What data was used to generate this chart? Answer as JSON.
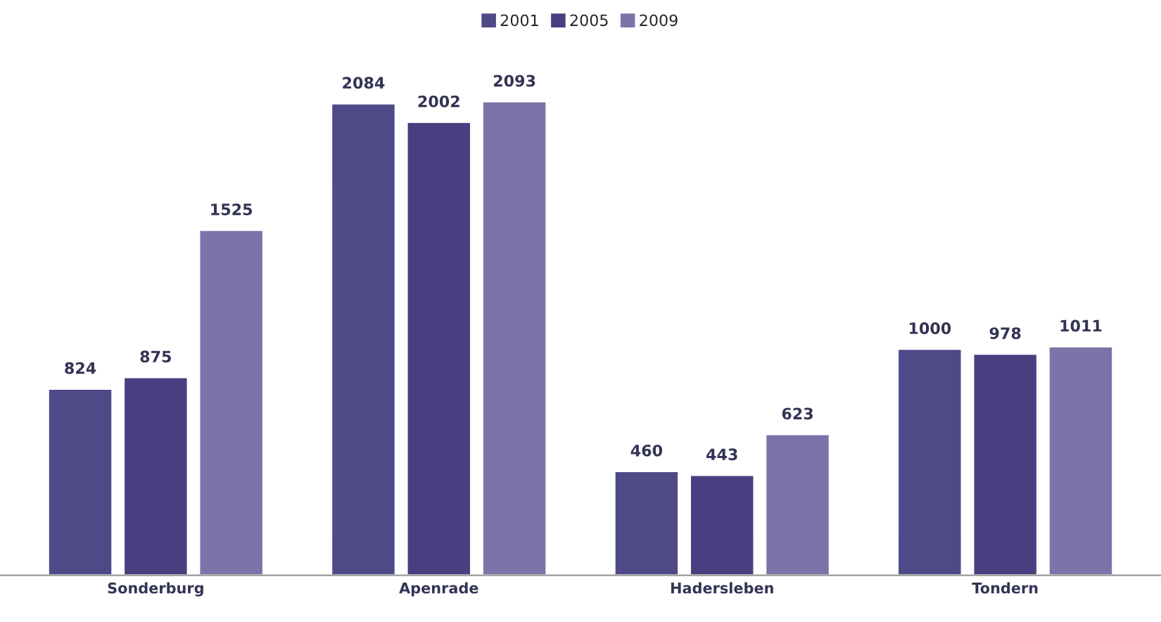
{
  "chart_data": {
    "type": "bar",
    "categories": [
      "Sonderburg",
      "Apenrade",
      "Hadersleben",
      "Tondern"
    ],
    "series": [
      {
        "name": "2001",
        "color": "#4e4987",
        "values": [
          824,
          2084,
          460,
          1000
        ]
      },
      {
        "name": "2005",
        "color": "#483f80",
        "values": [
          875,
          2002,
          443,
          978
        ]
      },
      {
        "name": "2009",
        "color": "#7b74a8",
        "values": [
          1525,
          2093,
          623,
          1011
        ]
      }
    ],
    "data_labels": true,
    "legend": "top",
    "grid": false
  }
}
